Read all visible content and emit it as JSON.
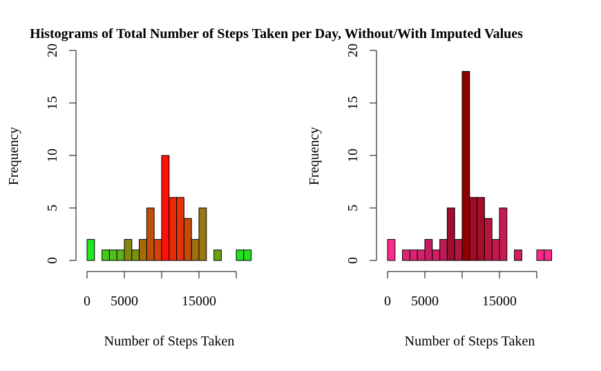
{
  "figure": {
    "title": "Histograms of Total Number of Steps Taken per Day, Without/With Imputed Values"
  },
  "chart_data": [
    {
      "type": "bar",
      "subtype": "histogram",
      "xlabel": "Number of Steps Taken",
      "ylabel": "Frequency",
      "xlim": [
        0,
        22000
      ],
      "ylim": [
        0,
        20
      ],
      "x_ticks": [
        0,
        5000,
        10000,
        15000,
        20000
      ],
      "x_tick_labels": [
        "0",
        "5000",
        "",
        "15000",
        ""
      ],
      "y_ticks": [
        0,
        5,
        10,
        15,
        20
      ],
      "y_tick_labels": [
        "0",
        "5",
        "10",
        "15",
        "20"
      ],
      "bin_width": 1000,
      "bin_edges": [
        0,
        1000,
        2000,
        3000,
        4000,
        5000,
        6000,
        7000,
        8000,
        9000,
        10000,
        11000,
        12000,
        13000,
        14000,
        15000,
        16000,
        17000,
        18000,
        19000,
        20000,
        21000,
        22000
      ],
      "values": [
        2,
        0,
        1,
        1,
        1,
        2,
        1,
        2,
        5,
        2,
        10,
        6,
        6,
        4,
        2,
        5,
        0,
        1,
        0,
        0,
        1,
        1
      ],
      "colors": [
        "#1ee81e",
        "#ffffff",
        "#48c819",
        "#52be18",
        "#5cb416",
        "#84880f",
        "#7a930f",
        "#a86b0c",
        "#c44e09",
        "#d2420a",
        "#ff1108",
        "#eb2a06",
        "#e33307",
        "#c84a0b",
        "#a0700f",
        "#9a780f",
        "#ffffff",
        "#6aa312",
        "#ffffff",
        "#ffffff",
        "#20e320",
        "#22e121"
      ],
      "grid": false,
      "legend": "none"
    },
    {
      "type": "bar",
      "subtype": "histogram",
      "xlabel": "Number of Steps Taken",
      "ylabel": "Frequency",
      "xlim": [
        0,
        22000
      ],
      "ylim": [
        0,
        20
      ],
      "x_ticks": [
        0,
        5000,
        10000,
        15000,
        20000
      ],
      "x_tick_labels": [
        "0",
        "5000",
        "",
        "15000",
        ""
      ],
      "y_ticks": [
        0,
        5,
        10,
        15,
        20
      ],
      "y_tick_labels": [
        "0",
        "5",
        "10",
        "15",
        "20"
      ],
      "bin_width": 1000,
      "bin_edges": [
        0,
        1000,
        2000,
        3000,
        4000,
        5000,
        6000,
        7000,
        8000,
        9000,
        10000,
        11000,
        12000,
        13000,
        14000,
        15000,
        16000,
        17000,
        18000,
        19000,
        20000,
        21000,
        22000
      ],
      "values": [
        2,
        0,
        1,
        1,
        1,
        2,
        1,
        2,
        5,
        2,
        18,
        6,
        6,
        4,
        2,
        5,
        0,
        1,
        0,
        0,
        1,
        1
      ],
      "colors": [
        "#ff2a8c",
        "#ffffff",
        "#e02477",
        "#dc2273",
        "#d6206d",
        "#c81c5e",
        "#d21f68",
        "#bc1a54",
        "#9e0e30",
        "#b0163f",
        "#8c0000",
        "#a00a22",
        "#a50c27",
        "#b8143c",
        "#c61a4e",
        "#c81b52",
        "#ffffff",
        "#d11f60",
        "#ffffff",
        "#ffffff",
        "#ff2887",
        "#ff2a8e"
      ],
      "grid": false,
      "legend": "none"
    }
  ]
}
